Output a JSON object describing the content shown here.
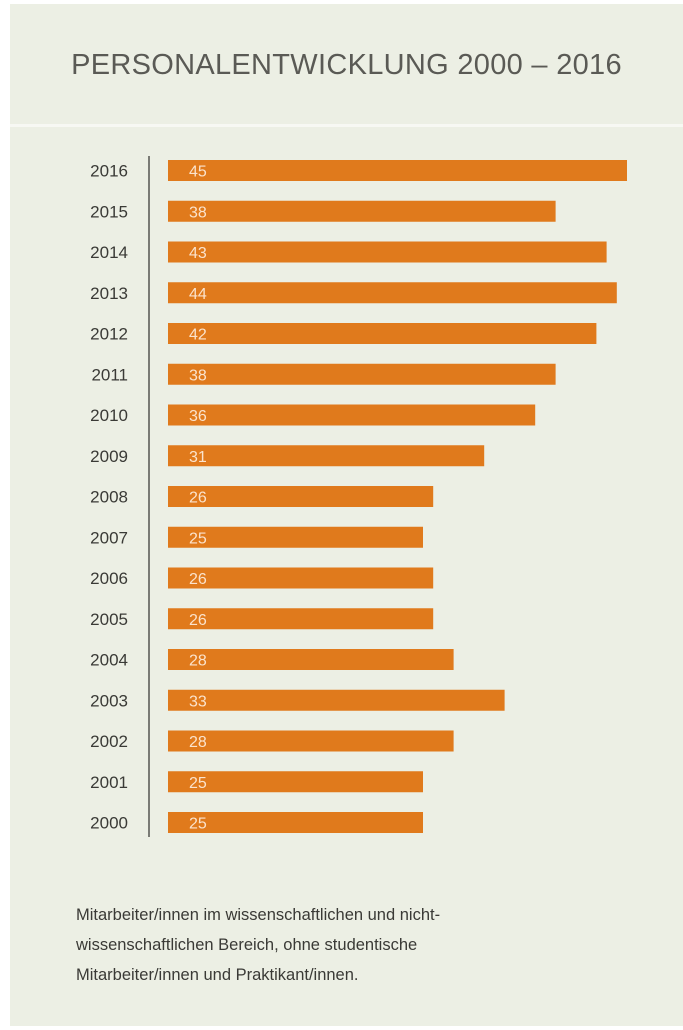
{
  "title": "PERSONALENTWICKLUNG 2000 – 2016",
  "footnote_lines": [
    "Mitarbeiter/innen im wissenschaftlichen und nicht-",
    "wissenschaftlichen Bereich, ohne studentische",
    "Mitarbeiter/innen und Praktikant/innen."
  ],
  "colors": {
    "background": "#ecefe4",
    "bar": "#e07a1c",
    "bar_label": "#fbe3cc",
    "category_label": "#3a3a36",
    "axis": "#555550"
  },
  "chart_data": {
    "type": "bar",
    "orientation": "horizontal",
    "title": "PERSONALENTWICKLUNG 2000 – 2016",
    "xlabel": "",
    "ylabel": "",
    "categories": [
      "2016",
      "2015",
      "2014",
      "2013",
      "2012",
      "2011",
      "2010",
      "2009",
      "2008",
      "2007",
      "2006",
      "2005",
      "2004",
      "2003",
      "2002",
      "2001",
      "2000"
    ],
    "values": [
      45,
      38,
      43,
      44,
      42,
      38,
      36,
      31,
      26,
      25,
      26,
      26,
      28,
      33,
      28,
      25,
      25
    ],
    "xlim": [
      0,
      45
    ],
    "grid": false,
    "legend": "none",
    "data_labels": "inside-start"
  }
}
